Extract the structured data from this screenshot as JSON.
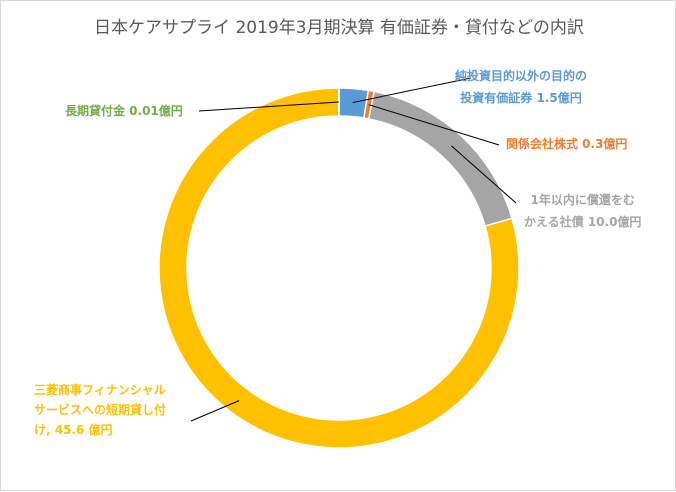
{
  "chart_data": {
    "type": "pie",
    "variant": "doughnut",
    "title": "日本ケアサプライ 2019年3月期決算 有価証券・貸付などの内訳",
    "slices": [
      {
        "label_lines": [
          "純投資目的以外の目的の",
          "投資有価証券 1.5億円"
        ],
        "value": 1.5,
        "color": "#5b9bd5"
      },
      {
        "label_lines": [
          "関係会社株式 0.3億円"
        ],
        "value": 0.3,
        "color": "#ed7d31"
      },
      {
        "label_lines": [
          "1年以内に償還をむ",
          "かえる社債 10.0億円"
        ],
        "value": 10.0,
        "color": "#a5a5a5"
      },
      {
        "label_lines": [
          "三菱商事フィナンシャル",
          "サービスへの短期貸し付",
          "け, 45.6 億円"
        ],
        "value": 45.6,
        "color": "#ffc000"
      },
      {
        "label_lines": [
          "長期貸付金 0.01億円"
        ],
        "value": 0.01,
        "color": "#70ad47"
      }
    ],
    "legend": "none"
  }
}
